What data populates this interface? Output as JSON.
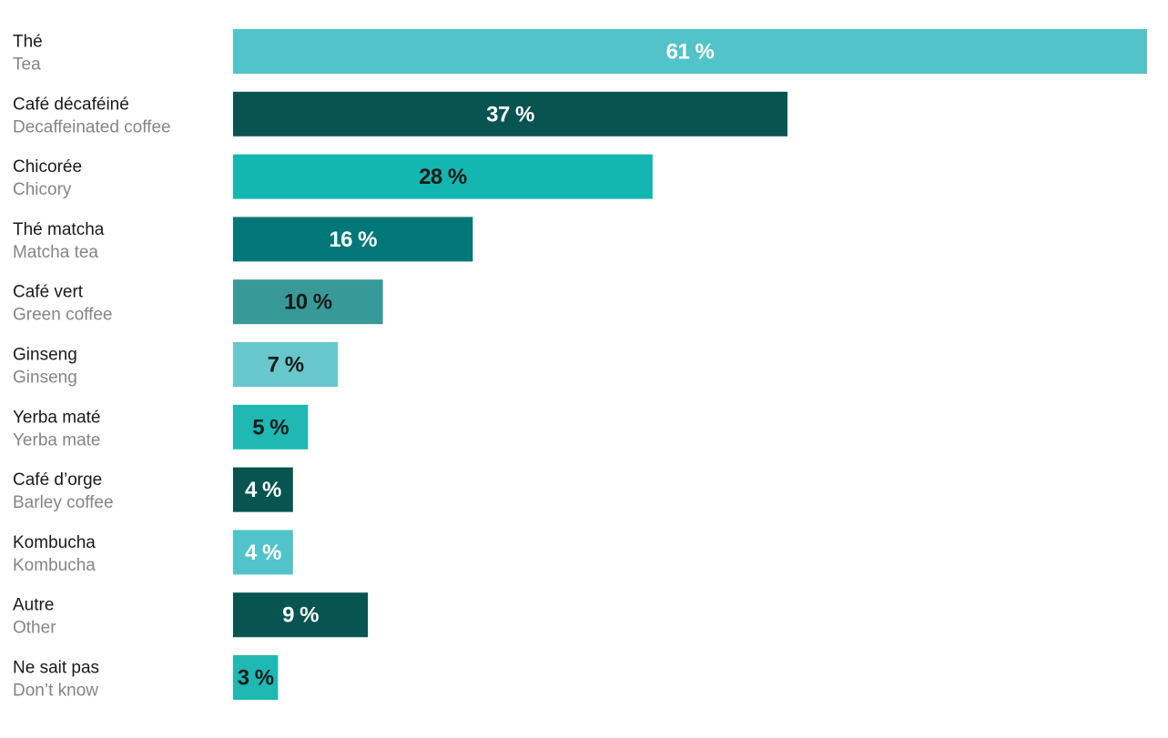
{
  "chart_data": {
    "type": "bar",
    "orientation": "horizontal",
    "categories": [
      {
        "label": "Thé",
        "label_en": "Tea"
      },
      {
        "label": "Café décaféiné",
        "label_en": "Decaffeinated coffee"
      },
      {
        "label": "Chicorée",
        "label_en": "Chicory"
      },
      {
        "label": "Thé matcha",
        "label_en": "Matcha tea"
      },
      {
        "label": "Café vert",
        "label_en": "Green coffee"
      },
      {
        "label": "Ginseng",
        "label_en": "Ginseng"
      },
      {
        "label": "Yerba maté",
        "label_en": "Yerba mate"
      },
      {
        "label": "Café d’orge",
        "label_en": "Barley coffee"
      },
      {
        "label": "Kombucha",
        "label_en": "Kombucha"
      },
      {
        "label": "Autre",
        "label_en": "Other"
      },
      {
        "label": "Ne sait pas",
        "label_en": "Don’t know"
      }
    ],
    "values": [
      61,
      37,
      28,
      16,
      10,
      7,
      5,
      4,
      4,
      9,
      3
    ],
    "value_labels": [
      "61 %",
      "37 %",
      "28 %",
      "16 %",
      "10 %",
      "7 %",
      "5 %",
      "4 %",
      "4 %",
      "9 %",
      "3 %"
    ],
    "bar_colors": [
      "#52c4c9",
      "#075450",
      "#13b6b0",
      "#027779",
      "#389a98",
      "#67c7cd",
      "#1fb8b3",
      "#075450",
      "#52c4c9",
      "#075450",
      "#1fb8b3"
    ],
    "label_colors": [
      "#ffffff",
      "#ffffff",
      "#1a1a1a",
      "#ffffff",
      "#1a1a1a",
      "#1a1a1a",
      "#1a1a1a",
      "#ffffff",
      "#ffffff",
      "#ffffff",
      "#1a1a1a"
    ],
    "xlim": [
      0,
      61
    ],
    "legend": "none",
    "grid": false,
    "value_unit": "%"
  }
}
